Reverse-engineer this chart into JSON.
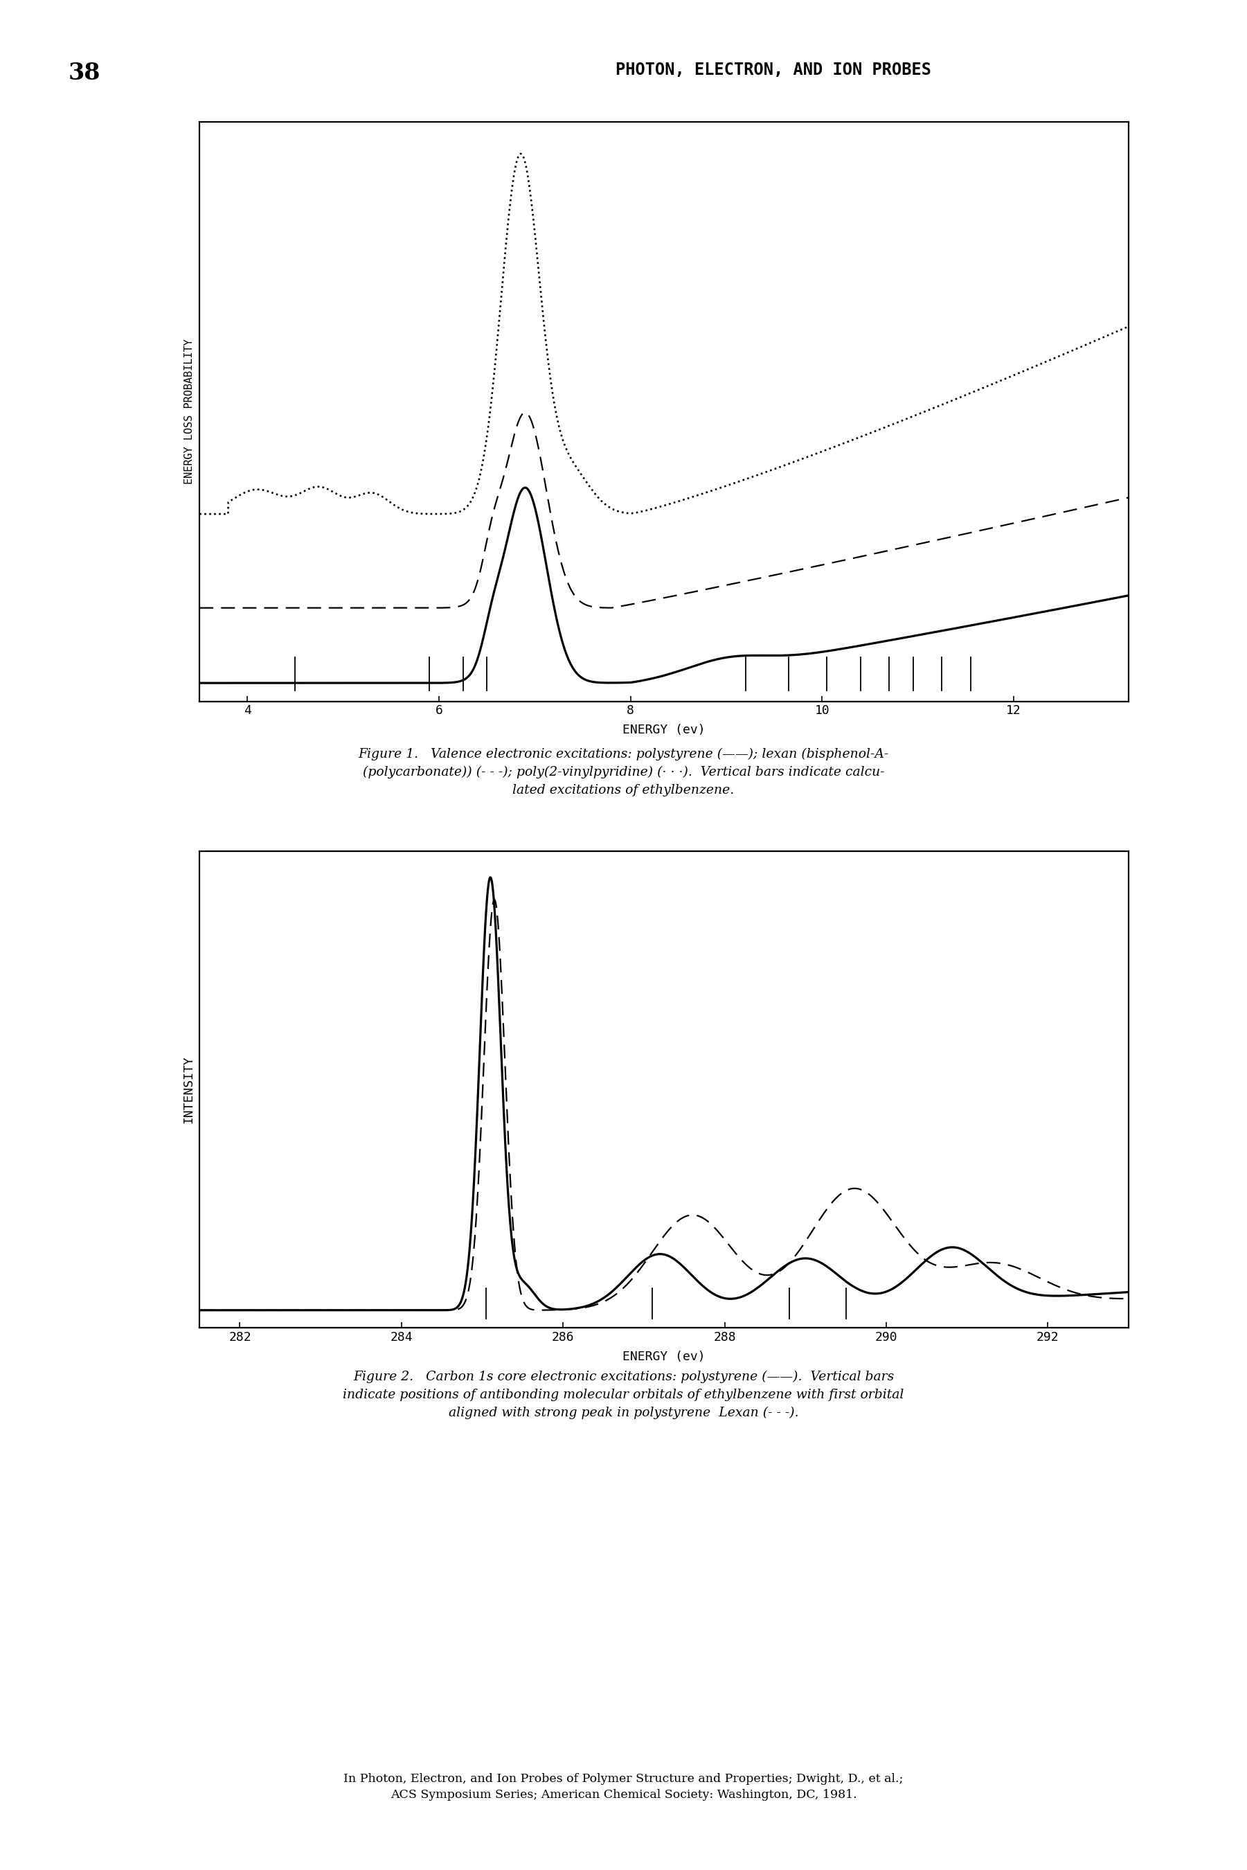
{
  "page_number": "38",
  "header": "PHOTON, ELECTRON, AND ION PROBES",
  "fig1_xlabel": "ENERGY (ev)",
  "fig1_ylabel": "ENERGY LOSS PROBABILITY",
  "fig1_xlim": [
    3.5,
    13.2
  ],
  "fig1_caption": "Figure 1.   Valence electronic excitations: polystyrene (——); lexan (bisphenol-A-\n(polycarbonate)) (- - -); poly(2-vinylpyridine) (· · ·).  Vertical bars indicate calcu-\nlated excitations of ethylbenzene.",
  "fig1_vbars": [
    4.5,
    5.9,
    6.25,
    6.5,
    9.2,
    9.65,
    10.05,
    10.4,
    10.7,
    10.95,
    11.25,
    11.55
  ],
  "fig2_xlabel": "ENERGY (ev)",
  "fig2_ylabel": "INTENSITY",
  "fig2_xlim": [
    281.5,
    293.0
  ],
  "fig2_caption": "Figure 2.   Carbon 1s core electronic excitations: polystyrene (——).  Vertical bars\nindicate positions of antibonding molecular orbitals of ethylbenzene with first orbital\naligned with strong peak in polystyrene  Lexan (- - -).",
  "fig2_vbars": [
    285.05,
    287.1,
    288.8,
    289.5
  ],
  "footer": "In Photon, Electron, and Ion Probes of Polymer Structure and Properties; Dwight, D., et al.;\nACS Symposium Series; American Chemical Society: Washington, DC, 1981.",
  "background": "#ffffff"
}
